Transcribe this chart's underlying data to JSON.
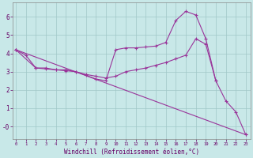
{
  "xlabel": "Windchill (Refroidissement éolien,°C)",
  "bg_color": "#c8e8e8",
  "line_color": "#993399",
  "grid_color": "#a0c8c8",
  "ylim": [
    -0.7,
    6.8
  ],
  "xlim": [
    -0.3,
    23.5
  ],
  "line1_x": [
    0,
    23
  ],
  "line1_y": [
    4.2,
    -0.45
  ],
  "line2_x": [
    0,
    1,
    2,
    3,
    4,
    5,
    6,
    7,
    8,
    9,
    10,
    11,
    12,
    13,
    14,
    15,
    16,
    17,
    18,
    19,
    20,
    21,
    22,
    23
  ],
  "line2_y": [
    4.2,
    3.9,
    3.2,
    3.2,
    3.1,
    3.1,
    3.0,
    2.8,
    2.6,
    2.5,
    4.2,
    4.3,
    4.3,
    4.35,
    4.4,
    4.6,
    5.8,
    6.3,
    6.1,
    4.8,
    2.5,
    1.4,
    0.8,
    -0.45
  ],
  "line3_x": [
    0,
    2,
    3,
    4,
    5,
    6,
    7,
    8,
    9,
    10,
    11,
    12,
    13,
    14,
    15,
    16,
    17,
    18,
    19,
    20
  ],
  "line3_y": [
    4.2,
    3.2,
    3.15,
    3.1,
    3.05,
    3.0,
    2.85,
    2.75,
    2.65,
    2.75,
    3.0,
    3.1,
    3.2,
    3.35,
    3.5,
    3.7,
    3.9,
    4.8,
    4.5,
    2.5
  ]
}
